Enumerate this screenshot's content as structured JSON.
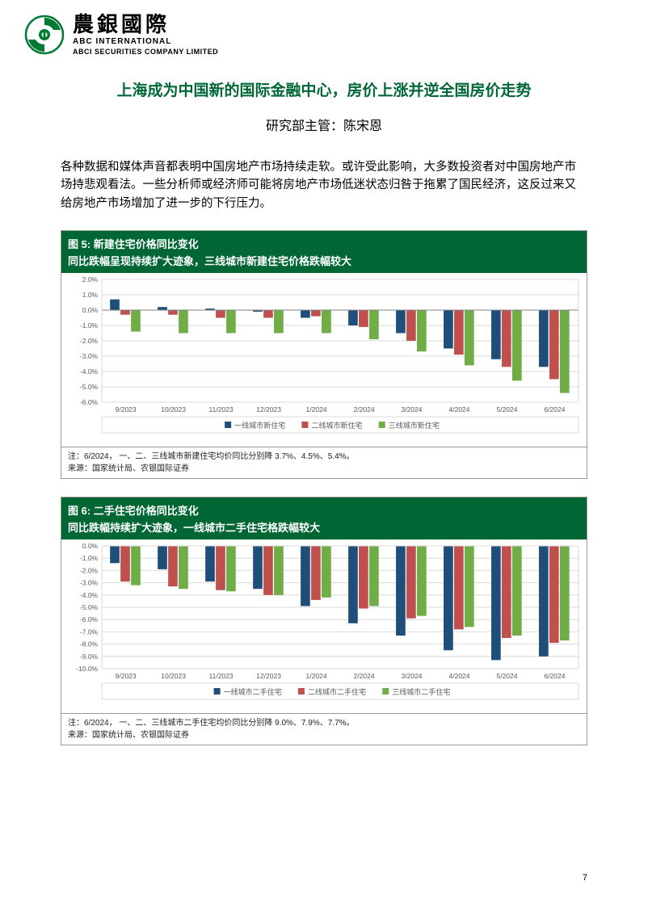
{
  "header": {
    "cn_name": "農銀國際",
    "en_name1": "ABC INTERNATIONAL",
    "en_name2": "ABCI SECURITIES COMPANY LIMITED",
    "logo_color": "#007a33"
  },
  "title": "上海成为中国新的国际金融中心，房价上涨并逆全国房价走势",
  "subtitle": "研究部主管：陈宋恩",
  "body_text": "各种数据和媒体声音都表明中国房地产市场持续走软。或许受此影响，大多数投资者对中国房地产市场持悲观看法。一些分析师或经济师可能将房地产市场低迷状态归咎于拖累了国民经济，这反过来又给房地产市场增加了进一步的下行压力。",
  "chart5": {
    "type": "bar",
    "header_prefix": "图 5:",
    "header_title": "新建住宅价格同比变化",
    "header_subtitle": "同比跌幅呈现持续扩大迹象，三线城市新建住宅价格跌幅较大",
    "background_color": "#ffffff",
    "header_bg": "#006633",
    "categories": [
      "9/2023",
      "10/2023",
      "11/2023",
      "12/2023",
      "1/2024",
      "2/2024",
      "3/2024",
      "4/2024",
      "5/2024",
      "6/2024"
    ],
    "series": [
      {
        "name": "一线城市新住宅",
        "color": "#1f4e79",
        "values": [
          0.7,
          0.2,
          0.1,
          -0.1,
          -0.5,
          -1.0,
          -1.5,
          -2.5,
          -3.2,
          -3.7
        ]
      },
      {
        "name": "二线城市新住宅",
        "color": "#c0504d",
        "values": [
          -0.3,
          -0.3,
          -0.5,
          -0.5,
          -0.4,
          -1.1,
          -2.0,
          -2.9,
          -3.7,
          -4.5
        ]
      },
      {
        "name": "三线城市新住宅",
        "color": "#70ad47",
        "values": [
          -1.4,
          -1.5,
          -1.5,
          -1.5,
          -1.5,
          -1.9,
          -2.7,
          -3.6,
          -4.6,
          -5.4
        ]
      }
    ],
    "ylim": [
      -6.0,
      2.0
    ],
    "yticks": [
      "2.0%",
      "1.0%",
      "0.0%",
      "-1.0%",
      "-2.0%",
      "-3.0%",
      "-4.0%",
      "-5.0%",
      "-6.0%"
    ],
    "ytick_values": [
      2.0,
      1.0,
      0.0,
      -1.0,
      -2.0,
      -3.0,
      -4.0,
      -5.0,
      -6.0
    ],
    "grid_color": "#d9d9d9",
    "axis_fontsize": 8.5,
    "legend_fontsize": 9,
    "bar_width": 0.22,
    "footer_note": "注：6/2024， 一、二、三线城市新建住宅均价同比分别降 3.7%、4.5%、5.4%。",
    "footer_source": "来源：国家统计局、农银国际证券"
  },
  "chart6": {
    "type": "bar",
    "header_prefix": "图 6:",
    "header_title": "二手住宅价格同比变化",
    "header_subtitle": "同比跌幅持续扩大迹象，一线城市二手住宅格跌幅较大",
    "background_color": "#ffffff",
    "header_bg": "#006633",
    "categories": [
      "9/2023",
      "10/2023",
      "11/2023",
      "12/2023",
      "1/2024",
      "2/2024",
      "3/2024",
      "4/2024",
      "5/2024",
      "6/2024"
    ],
    "series": [
      {
        "name": "一线城市二手住宅",
        "color": "#1f4e79",
        "values": [
          -1.4,
          -1.9,
          -2.9,
          -3.5,
          -4.9,
          -6.3,
          -7.3,
          -8.5,
          -9.3,
          -9.0
        ]
      },
      {
        "name": "二线城市二手住宅",
        "color": "#c0504d",
        "values": [
          -2.9,
          -3.3,
          -3.6,
          -4.0,
          -4.4,
          -5.1,
          -5.9,
          -6.8,
          -7.5,
          -7.9
        ]
      },
      {
        "name": "三线城市二手住宅",
        "color": "#70ad47",
        "values": [
          -3.2,
          -3.5,
          -3.7,
          -4.0,
          -4.2,
          -4.9,
          -5.7,
          -6.6,
          -7.3,
          -7.7
        ]
      }
    ],
    "ylim": [
      -10.0,
      0.0
    ],
    "yticks": [
      "0.0%",
      "-1.0%",
      "-2.0%",
      "-3.0%",
      "-4.0%",
      "-5.0%",
      "-6.0%",
      "-7.0%",
      "-8.0%",
      "-9.0%",
      "-10.0%"
    ],
    "ytick_values": [
      0.0,
      -1.0,
      -2.0,
      -3.0,
      -4.0,
      -5.0,
      -6.0,
      -7.0,
      -8.0,
      -9.0,
      -10.0
    ],
    "grid_color": "#d9d9d9",
    "axis_fontsize": 8.5,
    "legend_fontsize": 9,
    "bar_width": 0.22,
    "footer_note": "注：6/2024， 一、二、三线城市二手住宅均价同比分别降 9.0%、7.9%、7.7%。",
    "footer_source": "来源：国家统计局、农银国际证券"
  },
  "page_number": "7"
}
